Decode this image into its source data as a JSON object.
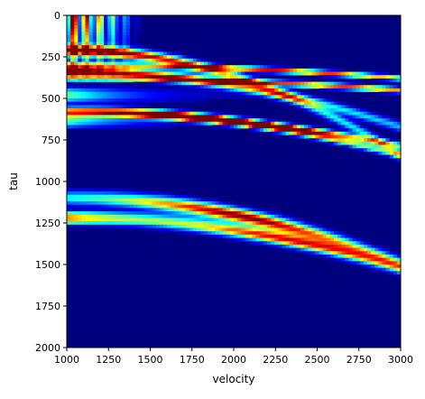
{
  "chart_data": {
    "type": "heatmap",
    "title": "",
    "xlabel": "velocity",
    "ylabel": "tau",
    "xlim": [
      1000,
      3000
    ],
    "ylim": [
      2000,
      0
    ],
    "y_inverted": true,
    "xticks": [
      1000,
      1250,
      1500,
      1750,
      2000,
      2250,
      2500,
      2750,
      3000
    ],
    "yticks": [
      0,
      250,
      500,
      750,
      1000,
      1250,
      1500,
      1750,
      2000
    ],
    "colormap": "jet",
    "colors": {
      "background": "#00007f",
      "high": "#7f0000"
    },
    "features": [
      {
        "kind": "horizontal_streaks",
        "label": "event_band_shallow",
        "tau_min": 270,
        "tau_max": 680,
        "intensity": 0.5
      },
      {
        "kind": "horizontal_streaks",
        "label": "event_band_deep",
        "tau_min": 1180,
        "tau_max": 1250,
        "intensity": 0.45
      },
      {
        "kind": "hyperbola",
        "tau0": 210,
        "v_peak": 1300,
        "amplitude": 1.0,
        "width": 30,
        "tail_decay": 0.8
      },
      {
        "kind": "hyperbola",
        "tau0": 340,
        "v_peak": 1600,
        "amplitude": 0.8,
        "width": 28,
        "tail_decay": 0.9
      },
      {
        "kind": "hyperbola",
        "tau0": 300,
        "v_peak": 2250,
        "amplitude": 0.9,
        "width": 14,
        "tail_decay": 1.0
      },
      {
        "kind": "hyperbola",
        "tau0": 380,
        "v_peak": 2500,
        "amplitude": 0.85,
        "width": 16,
        "tail_decay": 1.0
      },
      {
        "kind": "hyperbola",
        "tau0": 570,
        "v_peak": 1900,
        "amplitude": 0.95,
        "width": 22,
        "tail_decay": 0.9
      },
      {
        "kind": "hyperbola",
        "tau0": 590,
        "v_peak": 2100,
        "amplitude": 0.9,
        "width": 20,
        "tail_decay": 0.9
      },
      {
        "kind": "hyperbola",
        "tau0": 1100,
        "v_peak": 2050,
        "amplitude": 1.0,
        "width": 40,
        "tail_decay": 0.7
      },
      {
        "kind": "hyperbola",
        "tau0": 1220,
        "v_peak": 2300,
        "amplitude": 0.9,
        "width": 36,
        "tail_decay": 0.7
      },
      {
        "kind": "energy_wedge",
        "tau_max": 420,
        "v_max": 1450,
        "amplitude": 1.0
      }
    ]
  }
}
